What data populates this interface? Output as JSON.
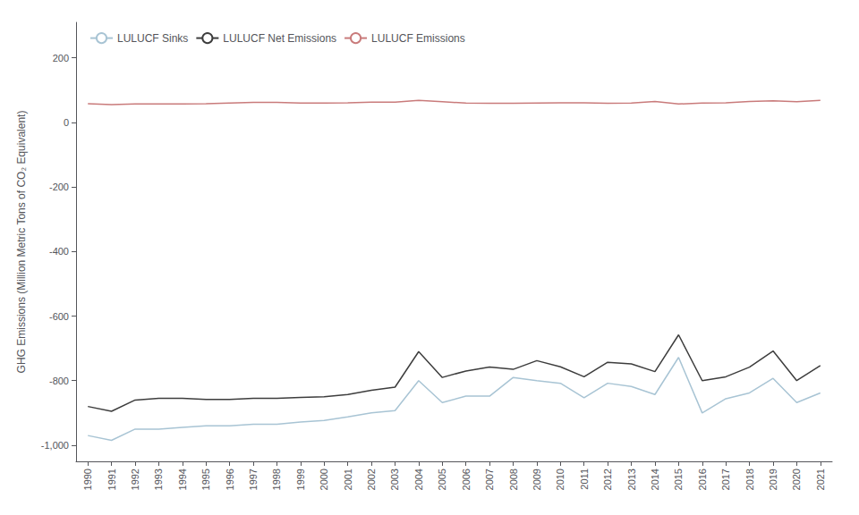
{
  "chart_data": {
    "type": "line",
    "y_label": "GHG Emissions (Million Metric Tons of CO₂ Equivalent)",
    "x": [
      1990,
      1991,
      1992,
      1993,
      1994,
      1995,
      1996,
      1997,
      1998,
      1999,
      2000,
      2001,
      2002,
      2003,
      2004,
      2005,
      2006,
      2007,
      2008,
      2009,
      2010,
      2011,
      2012,
      2013,
      2014,
      2015,
      2016,
      2017,
      2018,
      2019,
      2020,
      2021
    ],
    "series": [
      {
        "name": "LULUCF Sinks",
        "color": "#a8c4d4",
        "values": [
          -970,
          -985,
          -950,
          -950,
          -945,
          -940,
          -940,
          -935,
          -935,
          -928,
          -923,
          -912,
          -900,
          -893,
          -800,
          -868,
          -848,
          -848,
          -790,
          -800,
          -808,
          -853,
          -808,
          -818,
          -843,
          -728,
          -900,
          -856,
          -838,
          -793,
          -868,
          -838
        ]
      },
      {
        "name": "LULUCF Net Emissions",
        "color": "#3d3d3d",
        "values": [
          -880,
          -895,
          -860,
          -855,
          -855,
          -858,
          -858,
          -855,
          -855,
          -852,
          -850,
          -843,
          -830,
          -820,
          -710,
          -790,
          -770,
          -758,
          -765,
          -738,
          -757,
          -788,
          -743,
          -748,
          -772,
          -658,
          -800,
          -788,
          -758,
          -708,
          -800,
          -753
        ]
      },
      {
        "name": "LULUCF Emissions",
        "color": "#c97b7b",
        "values": [
          58,
          55,
          57,
          57,
          57,
          58,
          60,
          62,
          62,
          60,
          60,
          61,
          63,
          63,
          68,
          64,
          60,
          59,
          59,
          60,
          61,
          61,
          59,
          60,
          65,
          57,
          60,
          61,
          65,
          67,
          64,
          68
        ]
      }
    ],
    "xlim": [
      1989.5,
      2021.5
    ],
    "xticks": [
      1990,
      1991,
      1992,
      1993,
      1994,
      1995,
      1996,
      1997,
      1998,
      1999,
      2000,
      2001,
      2002,
      2003,
      2004,
      2005,
      2006,
      2007,
      2008,
      2009,
      2010,
      2011,
      2012,
      2013,
      2014,
      2015,
      2016,
      2017,
      2018,
      2019,
      2020,
      2021
    ],
    "ylim": [
      -1050,
      310
    ],
    "yticks": [
      {
        "value": -1000,
        "label": "-1,000"
      },
      -800,
      -600,
      -400,
      -200,
      0,
      200
    ],
    "grid": false,
    "legend": "upper left"
  }
}
